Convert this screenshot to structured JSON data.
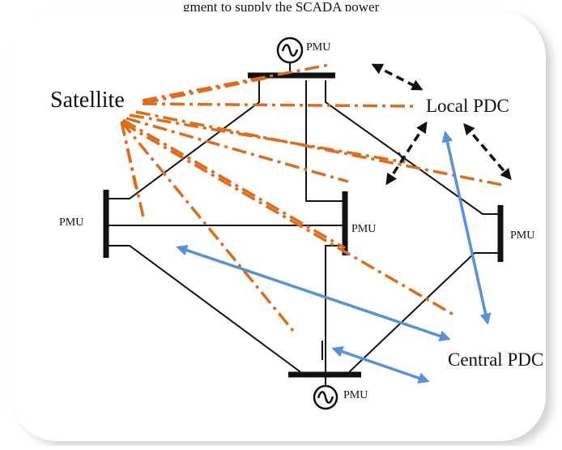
{
  "header_caption": "gment to supply the SCADA power",
  "labels": {
    "satellite": "Satellite",
    "local_pdc": "Local PDC",
    "central_pdc": "Central PDC",
    "pmu": "PMU"
  },
  "colors": {
    "line": "#111111",
    "satellite_link": "#dd6d1e",
    "central_link": "#5b8fd6",
    "local_link": "#111111",
    "panel_shadow": "#9aa0a6"
  },
  "icons": {
    "generator": "sine-in-circle"
  }
}
